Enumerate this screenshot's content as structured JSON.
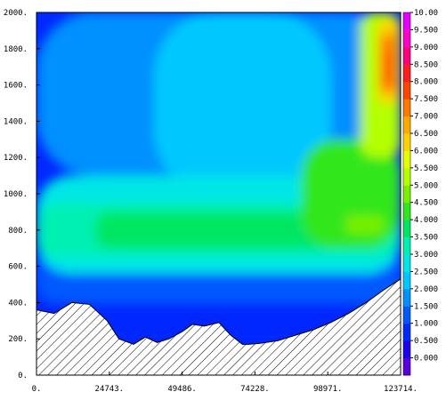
{
  "chart_data": {
    "type": "heatmap",
    "title": "",
    "xlabel": "",
    "ylabel": "",
    "xlim": [
      0,
      123714
    ],
    "ylim": [
      0,
      2000
    ],
    "x_tick_labels": [
      "0.",
      "24743.",
      "49486.",
      "74228.",
      "98971.",
      "123714."
    ],
    "x_tick_values": [
      0,
      24743,
      49486,
      74228,
      98971,
      123714
    ],
    "y_tick_labels": [
      "0.",
      "200.",
      "400.",
      "600.",
      "800.",
      "1000.",
      "1200.",
      "1400.",
      "1600.",
      "1800.",
      "2000."
    ],
    "y_tick_values": [
      0,
      200,
      400,
      600,
      800,
      1000,
      1200,
      1400,
      1600,
      1800,
      2000
    ],
    "colorbar": {
      "labels": [
        "0.000",
        "0.500",
        "1.000",
        "1.500",
        "2.000",
        "2.500",
        "3.000",
        "3.500",
        "4.000",
        "4.500",
        "5.000",
        "5.500",
        "6.000",
        "6.500",
        "7.000",
        "7.500",
        "8.000",
        "8.500",
        "9.000",
        "9.500",
        "10.00"
      ],
      "values": [
        0,
        0.5,
        1,
        1.5,
        2,
        2.5,
        3,
        3.5,
        4,
        4.5,
        5,
        5.5,
        6,
        6.5,
        7,
        7.5,
        8,
        8.5,
        9,
        9.5,
        10
      ],
      "colors": [
        "#5a00e0",
        "#1e00f0",
        "#0028ff",
        "#0058ff",
        "#0090ff",
        "#00c8ff",
        "#00e6e6",
        "#00f0b4",
        "#00e664",
        "#32e61e",
        "#78f000",
        "#b4ff00",
        "#e6ff00",
        "#ffd200",
        "#ffaa00",
        "#ff7800",
        "#ff4600",
        "#ff1e1e",
        "#ff0078",
        "#ff00c8",
        "#e600ff"
      ]
    },
    "terrain_profile": {
      "x": [
        0,
        6000,
        12000,
        18000,
        24000,
        28000,
        33000,
        37000,
        41000,
        45000,
        49486,
        53000,
        57000,
        62000,
        66000,
        70000,
        72000,
        76000,
        82000,
        88000,
        94000,
        100000,
        106000,
        112000,
        118000,
        123714
      ],
      "y": [
        360,
        340,
        400,
        390,
        300,
        200,
        170,
        210,
        180,
        200,
        240,
        280,
        270,
        290,
        220,
        170,
        170,
        175,
        190,
        220,
        250,
        290,
        340,
        400,
        470,
        530
      ],
      "pattern": "hatched"
    },
    "value_regions": [
      {
        "level": 0.5,
        "x": [
          70000,
          90000
        ],
        "y": [
          200,
          330
        ]
      },
      {
        "level": 1.0,
        "x": [
          0,
          123714
        ],
        "y": [
          170,
          600
        ]
      },
      {
        "level": 1.5,
        "x": [
          0,
          123714
        ],
        "y": [
          400,
          700
        ]
      },
      {
        "level": 2.0,
        "x": [
          0,
          123714
        ],
        "y": [
          1100,
          2000
        ]
      },
      {
        "level": 2.5,
        "x": [
          40000,
          100000
        ],
        "y": [
          1000,
          2000
        ]
      },
      {
        "level": 3.0,
        "x": [
          0,
          123714
        ],
        "y": [
          560,
          1100
        ]
      },
      {
        "level": 3.5,
        "x": [
          0,
          123714
        ],
        "y": [
          650,
          950
        ]
      },
      {
        "level": 4.0,
        "x": [
          20000,
          110000
        ],
        "y": [
          700,
          900
        ]
      },
      {
        "level": 4.5,
        "x": [
          90000,
          123714
        ],
        "y": [
          700,
          1300
        ]
      },
      {
        "level": 5.0,
        "x": [
          105000,
          118000
        ],
        "y": [
          780,
          880
        ]
      },
      {
        "level": 5.5,
        "x": [
          110000,
          123714
        ],
        "y": [
          1200,
          2000
        ]
      },
      {
        "level": 6.5,
        "x": [
          116000,
          123714
        ],
        "y": [
          1500,
          1960
        ]
      },
      {
        "level": 7.5,
        "x": [
          117000,
          122000
        ],
        "y": [
          1560,
          1880
        ]
      },
      {
        "level": 8.0,
        "x": [
          118000,
          121000
        ],
        "y": [
          1610,
          1790
        ]
      }
    ]
  }
}
